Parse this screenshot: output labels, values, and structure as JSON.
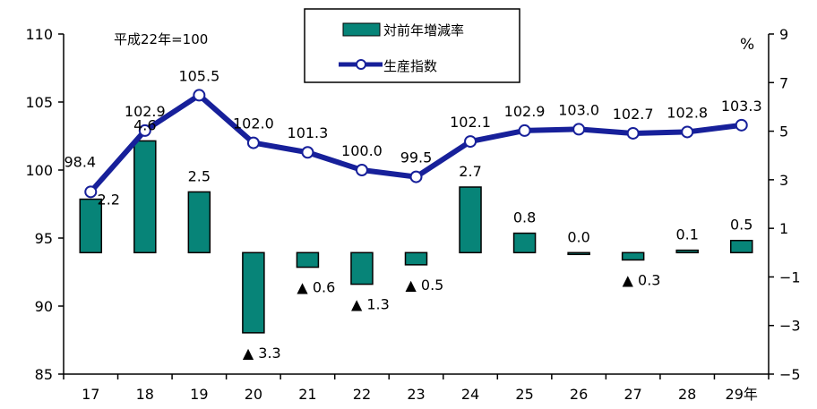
{
  "chart_data": {
    "type": "bar+line",
    "categories": [
      "17",
      "18",
      "19",
      "20",
      "21",
      "22",
      "23",
      "24",
      "25",
      "26",
      "27",
      "28",
      "29年"
    ],
    "base_note": "平成22年=100",
    "right_axis_unit": "%",
    "left_axis": {
      "ylim": [
        85,
        110
      ],
      "ticks": [
        "85",
        "90",
        "95",
        "100",
        "105",
        "110"
      ]
    },
    "right_axis": {
      "ylim": [
        -5,
        9
      ],
      "ticks": [
        "−5",
        "−3",
        "−1",
        "1",
        "3",
        "5",
        "7",
        "9"
      ]
    },
    "legend": {
      "placement": "top-center",
      "bar_label": "対前年増減率",
      "line_label": "生産指数"
    },
    "series": [
      {
        "name": "対前年増減率",
        "type": "bar",
        "axis": "right",
        "color": "#078478",
        "values": [
          2.2,
          4.6,
          2.5,
          -3.3,
          -0.6,
          -1.3,
          -0.5,
          2.7,
          0.8,
          0.0,
          -0.3,
          0.1,
          0.5
        ],
        "labels": [
          "2.2",
          "4.6",
          "2.5",
          "▲ 3.3",
          "▲ 0.6",
          "▲ 1.3",
          "▲ 0.5",
          "2.7",
          "0.8",
          "0.0",
          "▲ 0.3",
          "0.1",
          "0.5"
        ]
      },
      {
        "name": "生産指数",
        "type": "line",
        "axis": "left",
        "color": "#17209a",
        "values": [
          98.4,
          102.9,
          105.5,
          102.0,
          101.3,
          100.0,
          99.5,
          102.1,
          102.9,
          103.0,
          102.7,
          102.8,
          103.3
        ],
        "labels": [
          "98.4",
          "102.9",
          "105.5",
          "102.0",
          "101.3",
          "100.0",
          "99.5",
          "102.1",
          "102.9",
          "103.0",
          "102.7",
          "102.8",
          "103.3"
        ]
      }
    ]
  }
}
